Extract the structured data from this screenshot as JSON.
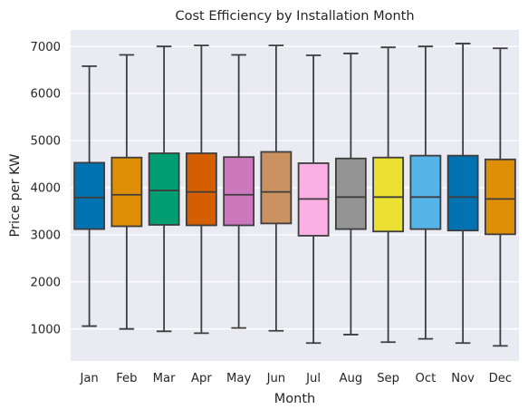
{
  "chart_data": {
    "type": "box",
    "title": "Cost Efficiency by Installation Month",
    "xlabel": "Month",
    "ylabel": "Price per KW",
    "ylim": [
      320,
      7350
    ],
    "yticks": [
      1000,
      2000,
      3000,
      4000,
      5000,
      6000,
      7000
    ],
    "ytick_labels": [
      "1000",
      "2000",
      "3000",
      "4000",
      "5000",
      "6000",
      "7000"
    ],
    "grid": true,
    "categories": [
      "Jan",
      "Feb",
      "Mar",
      "Apr",
      "May",
      "Jun",
      "Jul",
      "Aug",
      "Sep",
      "Oct",
      "Nov",
      "Dec"
    ],
    "boxes": [
      {
        "whislo": 1060,
        "q1": 3120,
        "med": 3790,
        "q3": 4530,
        "whishi": 6580
      },
      {
        "whislo": 1000,
        "q1": 3180,
        "med": 3850,
        "q3": 4640,
        "whishi": 6820
      },
      {
        "whislo": 950,
        "q1": 3210,
        "med": 3940,
        "q3": 4730,
        "whishi": 7000
      },
      {
        "whislo": 910,
        "q1": 3200,
        "med": 3910,
        "q3": 4730,
        "whishi": 7020
      },
      {
        "whislo": 1020,
        "q1": 3200,
        "med": 3850,
        "q3": 4650,
        "whishi": 6820
      },
      {
        "whislo": 960,
        "q1": 3240,
        "med": 3910,
        "q3": 4760,
        "whishi": 7020
      },
      {
        "whislo": 700,
        "q1": 2980,
        "med": 3760,
        "q3": 4520,
        "whishi": 6810
      },
      {
        "whislo": 880,
        "q1": 3120,
        "med": 3800,
        "q3": 4620,
        "whishi": 6850
      },
      {
        "whislo": 720,
        "q1": 3070,
        "med": 3800,
        "q3": 4640,
        "whishi": 6980
      },
      {
        "whislo": 790,
        "q1": 3120,
        "med": 3800,
        "q3": 4680,
        "whishi": 7000
      },
      {
        "whislo": 700,
        "q1": 3090,
        "med": 3800,
        "q3": 4680,
        "whishi": 7060
      },
      {
        "whislo": 640,
        "q1": 3010,
        "med": 3760,
        "q3": 4600,
        "whishi": 6960
      }
    ],
    "colors": [
      "#0173b2",
      "#de8f05",
      "#029e73",
      "#d55e00",
      "#cc78bc",
      "#ca9161",
      "#fbafe4",
      "#949494",
      "#ece133",
      "#56b4e9",
      "#0173b2",
      "#de8f05"
    ],
    "plot_background": "#eaeaf2",
    "grid_color": "#ffffff",
    "line_color": "#3d3d3d"
  }
}
